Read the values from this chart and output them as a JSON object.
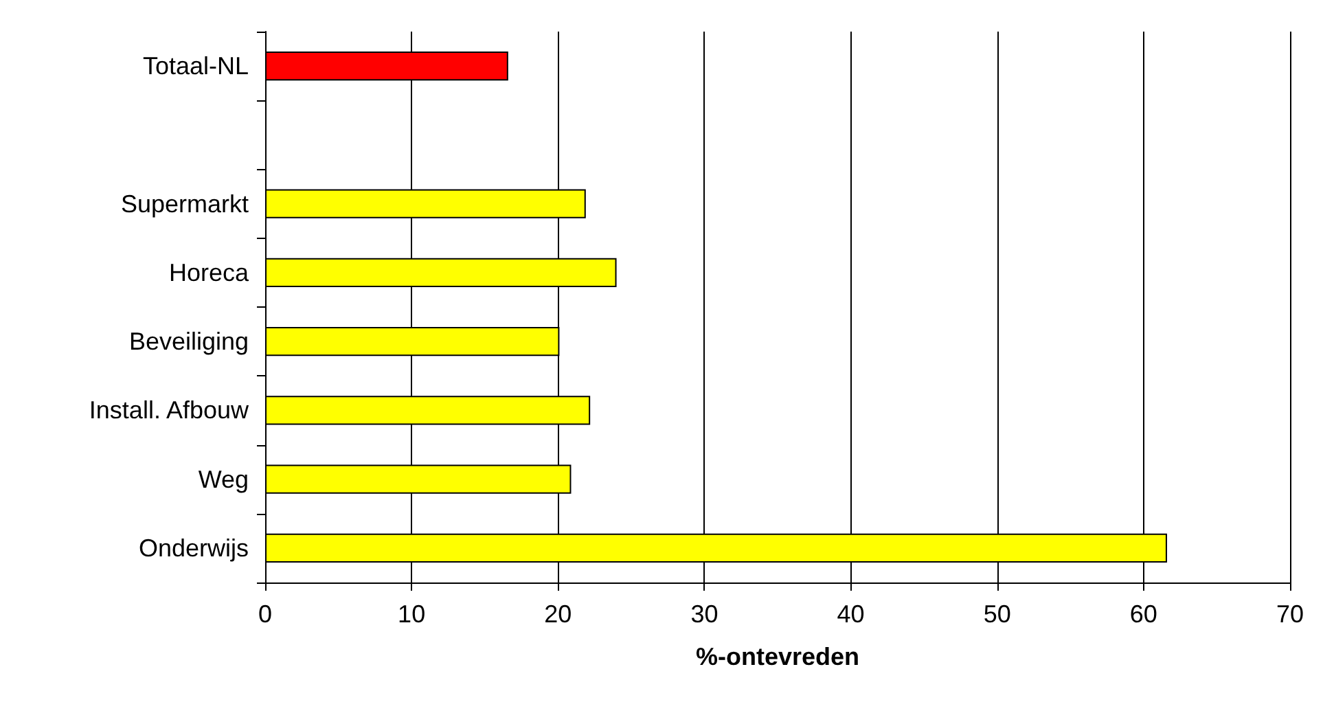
{
  "chart_data": {
    "type": "bar",
    "orientation": "horizontal",
    "xlabel": "%-ontevreden",
    "categories": [
      "Totaal-NL",
      null,
      "Supermarkt",
      "Horeca",
      "Beveiliging",
      "Install. Afbouw",
      "Weg",
      "Onderwijs"
    ],
    "values": [
      16.6,
      null,
      21.9,
      24.0,
      20.1,
      22.2,
      20.9,
      61.6
    ],
    "colors": [
      "#ff0000",
      null,
      "#ffff00",
      "#ffff00",
      "#ffff00",
      "#ffff00",
      "#ffff00",
      "#ffff00"
    ],
    "xlim": [
      0,
      70
    ],
    "xticks": [
      0,
      10,
      20,
      30,
      40,
      50,
      60,
      70
    ],
    "grid": "x"
  }
}
